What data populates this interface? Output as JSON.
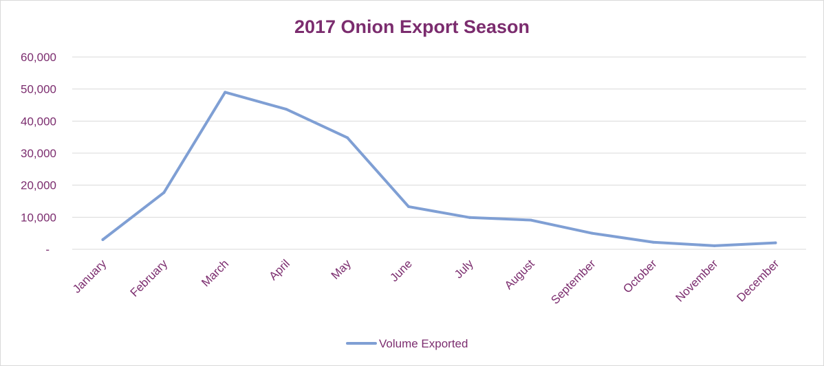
{
  "colors": {
    "text": "#7b2c6e",
    "series": "#7f9fd4",
    "gridline": "#d9d9d9",
    "border": "#d9d9d9"
  },
  "chart_data": {
    "type": "line",
    "title": "2017 Onion Export Season",
    "xlabel": "",
    "ylabel": "",
    "categories": [
      "January",
      "February",
      "March",
      "April",
      "May",
      "June",
      "July",
      "August",
      "September",
      "October",
      "November",
      "December"
    ],
    "series": [
      {
        "name": "Volume Exported",
        "values": [
          3000,
          17700,
          49000,
          43700,
          34800,
          13300,
          9900,
          9100,
          5000,
          2200,
          1100,
          2000
        ]
      }
    ],
    "ylim": [
      0,
      60000
    ],
    "yticks": [
      0,
      10000,
      20000,
      30000,
      40000,
      50000,
      60000
    ],
    "ytick_labels": [
      "-",
      "10,000",
      "20,000",
      "30,000",
      "40,000",
      "50,000",
      "60,000"
    ],
    "grid": true,
    "legend": "bottom"
  }
}
